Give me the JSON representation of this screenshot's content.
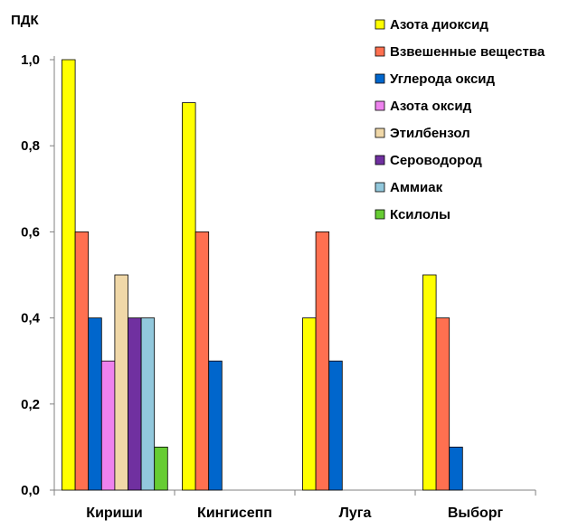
{
  "chart_data": {
    "type": "bar",
    "ylabel": "ПДК",
    "ylim": [
      0,
      1.0
    ],
    "yticks": [
      "0,0",
      "0,2",
      "0,4",
      "0,6",
      "0,8",
      "1,0"
    ],
    "ytick_values": [
      0,
      0.2,
      0.4,
      0.6,
      0.8,
      1.0
    ],
    "categories": [
      "Кириши",
      "Кингисепп",
      "Луга",
      "Выборг"
    ],
    "grid": false,
    "legend_position": "top-right",
    "series": [
      {
        "name": "Азота диоксид",
        "color": "#FFFF00",
        "values": [
          1.0,
          0.9,
          0.4,
          0.5
        ]
      },
      {
        "name": "Взвешенные вещества",
        "color": "#FF7050",
        "values": [
          0.6,
          0.6,
          0.6,
          0.4
        ]
      },
      {
        "name": "Углерода оксид",
        "color": "#0066CC",
        "values": [
          0.4,
          0.3,
          0.3,
          0.1
        ]
      },
      {
        "name": "Азота оксид",
        "color": "#EE82EE",
        "values": [
          0.3,
          null,
          null,
          null
        ]
      },
      {
        "name": "Этилбензол",
        "color": "#F0D8A8",
        "values": [
          0.5,
          null,
          null,
          null
        ]
      },
      {
        "name": "Сероводород",
        "color": "#7030A0",
        "values": [
          0.4,
          null,
          null,
          null
        ]
      },
      {
        "name": "Аммиак",
        "color": "#92C8DC",
        "values": [
          0.4,
          null,
          null,
          null
        ]
      },
      {
        "name": "Ксилолы",
        "color": "#66CC33",
        "values": [
          0.1,
          null,
          null,
          null
        ]
      }
    ]
  }
}
